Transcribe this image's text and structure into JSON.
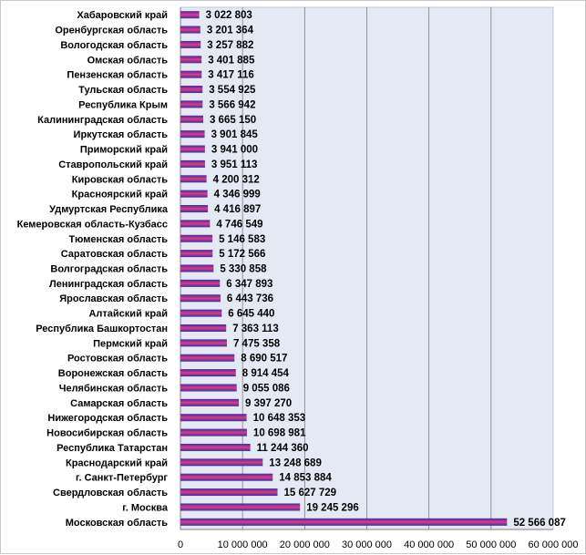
{
  "chart_data": {
    "type": "bar",
    "orientation": "horizontal",
    "categories": [
      "Хабаровский  край",
      "Оренбургская  область",
      "Вологодская  область",
      "Омская  область",
      "Пензенская  область",
      "Тульская  область",
      "Республика  Крым",
      "Калининградская  область",
      "Иркутская  область",
      "Приморский  край",
      "Ставропольский  край",
      "Кировская  область",
      "Красноярский  край",
      "Удмуртская  Республика",
      "Кемеровская  область-Кузбасс",
      "Тюменская  область",
      "Саратовская  область",
      "Волгоградская  область",
      "Ленинградская  область",
      "Ярославская  область",
      "Алтайский  край",
      "Республика  Башкортостан",
      "Пермский  край",
      "Ростовская  область",
      "Воронежская  область",
      "Челябинская  область",
      "Самарская  область",
      "Нижегородская  область",
      "Новосибирская  область",
      "Республика  Татарстан",
      "Краснодарский  край",
      "г. Санкт-Петербург",
      "Свердловская  область",
      "г. Москва",
      "Московская  область"
    ],
    "values": [
      3022803,
      3201364,
      3257882,
      3401885,
      3417116,
      3554925,
      3566942,
      3665150,
      3901845,
      3941000,
      3951113,
      4200312,
      4346999,
      4416897,
      4746549,
      5146583,
      5172566,
      5330858,
      6347893,
      6443736,
      6645440,
      7363113,
      7475358,
      8690517,
      8914454,
      9055086,
      9397270,
      10648353,
      10698981,
      11244360,
      13248689,
      14853884,
      15627729,
      19245296,
      52566087
    ],
    "value_labels": [
      "3 022 803",
      "3 201 364",
      "3 257 882",
      "3 401 885",
      "3 417 116",
      "3 554 925",
      "3 566 942",
      "3 665 150",
      "3 901 845",
      "3 941 000",
      "3 951 113",
      "4 200 312",
      "4 346 999",
      "4 416 897",
      "4 746 549",
      "5 146 583",
      "5 172 566",
      "5 330 858",
      "6 347 893",
      "6 443 736",
      "6 645 440",
      "7 363 113",
      "7 475 358",
      "8 690 517",
      "8 914 454",
      "9 055 086",
      "9 397 270",
      "10 648 353",
      "10 698 981",
      "11 244 360",
      "13 248 689",
      "14 853 884",
      "15 627 729",
      "19 245 296",
      "52 566 087"
    ],
    "xlim": [
      0,
      60000000
    ],
    "x_ticks": [
      0,
      10000000,
      20000000,
      30000000,
      40000000,
      50000000,
      60000000
    ],
    "x_tick_labels": [
      "0",
      "10 000 000",
      "20 000 000",
      "30 000 000",
      "40 000 000",
      "50 000 000",
      "60 000 000"
    ],
    "grid": "vertical",
    "legend": "none",
    "colors": {
      "plot_bg": "#e4e9f4",
      "bar_top": "#3a2fa0",
      "bar_mid": "#e0398a",
      "bar_bottom": "#3a2fa0",
      "grid": "#ffffff"
    }
  }
}
